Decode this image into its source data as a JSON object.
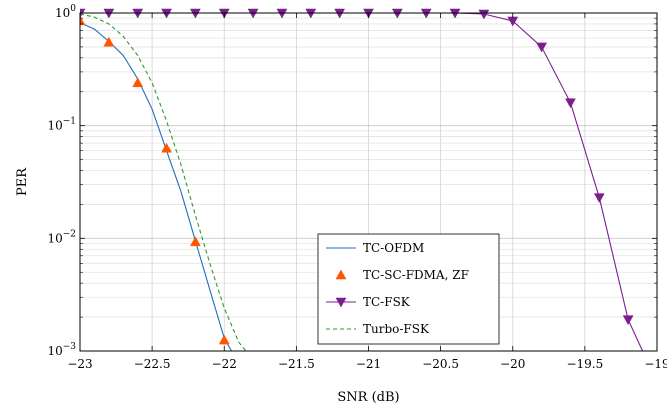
{
  "chart_data": {
    "type": "line",
    "xlabel": "SNR (dB)",
    "ylabel": "PER",
    "xlim": [
      -23,
      -19
    ],
    "ylim": [
      0.001,
      1
    ],
    "y_scale": "log",
    "grid": true,
    "x_ticks": [
      {
        "value": -23,
        "label": "−23"
      },
      {
        "value": -22.5,
        "label": "−22.5"
      },
      {
        "value": -22,
        "label": "−22"
      },
      {
        "value": -21.5,
        "label": "−21.5"
      },
      {
        "value": -21,
        "label": "−21"
      },
      {
        "value": -20.5,
        "label": "−20.5"
      },
      {
        "value": -20,
        "label": "−20"
      },
      {
        "value": -19.5,
        "label": "−19.5"
      },
      {
        "value": -19,
        "label": "−19"
      }
    ],
    "y_ticks": [
      {
        "value": 1,
        "base": "10",
        "exp": "0"
      },
      {
        "value": 0.1,
        "base": "10",
        "exp": "−1"
      },
      {
        "value": 0.01,
        "base": "10",
        "exp": "−2"
      },
      {
        "value": 0.001,
        "base": "10",
        "exp": "−3"
      }
    ],
    "legend_position": "bottom-center",
    "series": [
      {
        "name": "TC-OFDM",
        "color": "#1f6fbf",
        "style": "solid",
        "marker": "none",
        "x": [
          -23,
          -22.9,
          -22.8,
          -22.7,
          -22.6,
          -22.5,
          -22.4,
          -22.3,
          -22.2,
          -22.1,
          -22.0,
          -21.95
        ],
        "y": [
          0.82,
          0.72,
          0.56,
          0.42,
          0.26,
          0.14,
          0.06,
          0.026,
          0.0095,
          0.0035,
          0.0013,
          0.001
        ]
      },
      {
        "name": "TC-SC-FDMA, ZF",
        "color": "#ff5500",
        "style": "none",
        "marker": "triangle-up",
        "x": [
          -23,
          -22.8,
          -22.6,
          -22.4,
          -22.2,
          -22.0
        ],
        "y": [
          0.85,
          0.55,
          0.24,
          0.063,
          0.0093,
          0.00125
        ]
      },
      {
        "name": "TC-FSK",
        "color": "#7b1f8f",
        "style": "solid",
        "marker": "triangle-down",
        "x": [
          -23,
          -22.8,
          -22.6,
          -22.4,
          -22.2,
          -22.0,
          -21.8,
          -21.6,
          -21.4,
          -21.2,
          -21.0,
          -20.8,
          -20.6,
          -20.4,
          -20.2,
          -20.0,
          -19.8,
          -19.6,
          -19.4,
          -19.2,
          -19.1
        ],
        "y": [
          1,
          1,
          1,
          1,
          1,
          1,
          1,
          1,
          1,
          1,
          1,
          1,
          1,
          1,
          0.98,
          0.85,
          0.5,
          0.16,
          0.023,
          0.0019,
          0.001
        ]
      },
      {
        "name": "Turbo-FSK",
        "color": "#2e9a2e",
        "style": "dashed",
        "marker": "none",
        "x": [
          -23,
          -22.9,
          -22.8,
          -22.7,
          -22.6,
          -22.5,
          -22.4,
          -22.3,
          -22.2,
          -22.1,
          -22.0,
          -21.9,
          -21.85
        ],
        "y": [
          0.98,
          0.92,
          0.8,
          0.62,
          0.42,
          0.24,
          0.11,
          0.045,
          0.016,
          0.006,
          0.0024,
          0.0012,
          0.001
        ]
      }
    ]
  }
}
